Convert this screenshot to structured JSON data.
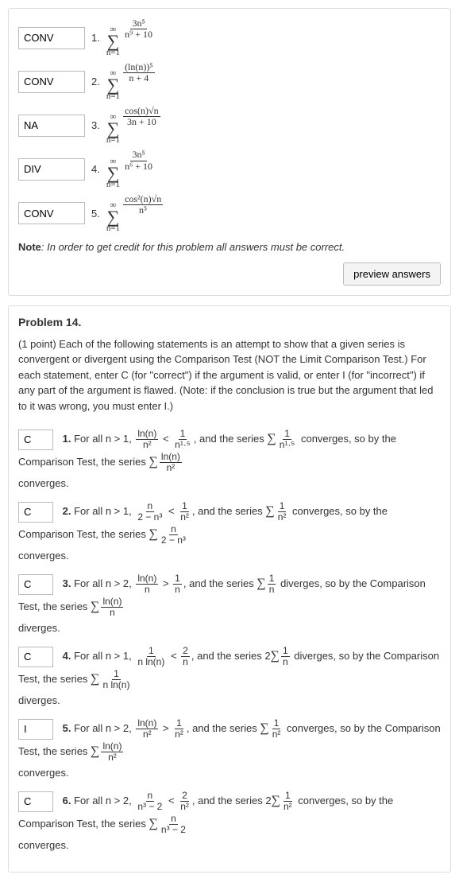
{
  "problem13": {
    "rows": [
      {
        "answer": "CONV",
        "num": "1.",
        "summand_top": "3n⁵",
        "summand_bot": "n⁹ + 10"
      },
      {
        "answer": "CONV",
        "num": "2.",
        "summand_top": "(ln(n))⁵",
        "summand_bot": "n + 4"
      },
      {
        "answer": "NA",
        "num": "3.",
        "summand_top": "cos(n)√n",
        "summand_bot": "3n + 10"
      },
      {
        "answer": "DIV",
        "num": "4.",
        "summand_top": "3n⁵",
        "summand_bot": "n⁶ + 10"
      },
      {
        "answer": "CONV",
        "num": "5.",
        "summand_top": "cos²(n)√n",
        "summand_bot": "n⁵"
      }
    ],
    "note_prefix": "Note",
    "note_text": ": In order to get credit for this problem all answers must be correct.",
    "preview_btn": "preview answers"
  },
  "problem14": {
    "header": "Problem 14.",
    "desc": "(1 point) Each of the following statements is an attempt to show that a given series is convergent or divergent using the Comparison Test (NOT the Limit Comparison Test.) For each statement, enter C (for \"correct\") if the argument is valid, or enter I (for \"incorrect\") if any part of the argument is flawed. (Note: if the conclusion is true but the argument that led to it was wrong, you must enter I.)",
    "statements": [
      {
        "answer": "C",
        "num": "1.",
        "pre": "For all n > 1, ",
        "lhs_top": "ln(n)",
        "lhs_bot": "n²",
        "rel": " < ",
        "rhs_top": "1",
        "rhs_bot": "n¹·⁵",
        "mid": ", and the series ",
        "cmp_top": "1",
        "cmp_bot": "n¹·⁵",
        "verb": " converges, so by the Comparison Test, the series ",
        "tail_top": "ln(n)",
        "tail_bot": "n²",
        "tail_verb": " converges."
      },
      {
        "answer": "C",
        "num": "2.",
        "pre": "For all n > 1, ",
        "lhs_top": "n",
        "lhs_bot": "2 − n³",
        "rel": " < ",
        "rhs_top": "1",
        "rhs_bot": "n²",
        "mid": ", and the series ",
        "cmp_top": "1",
        "cmp_bot": "n²",
        "verb": " converges, so by the Comparison Test, the series ",
        "tail_top": "n",
        "tail_bot": "2 − n³",
        "tail_verb": " converges."
      },
      {
        "answer": "C",
        "num": "3.",
        "pre": "For all n > 2, ",
        "lhs_top": "ln(n)",
        "lhs_bot": "n",
        "rel": " > ",
        "rhs_top": "1",
        "rhs_bot": "n",
        "mid": ", and the series ",
        "cmp_top": "1",
        "cmp_bot": "n",
        "verb": " diverges, so by the Comparison Test, the series ",
        "tail_top": "ln(n)",
        "tail_bot": "n",
        "tail_verb": "diverges."
      },
      {
        "answer": "C",
        "num": "4.",
        "pre": "For all n > 1, ",
        "lhs_top": "1",
        "lhs_bot": "n ln(n)",
        "rel": " < ",
        "rhs_top": "2",
        "rhs_bot": "n",
        "mid": ", and the series 2",
        "cmp_top": "1",
        "cmp_bot": "n",
        "verb": " diverges, so by the Comparison Test, the series ",
        "tail_top": "1",
        "tail_bot": "n ln(n)",
        "tail_verb": " diverges."
      },
      {
        "answer": "I",
        "num": "5.",
        "pre": "For all n > 2, ",
        "lhs_top": "ln(n)",
        "lhs_bot": "n²",
        "rel": " > ",
        "rhs_top": "1",
        "rhs_bot": "n²",
        "mid": ", and the series ",
        "cmp_top": "1",
        "cmp_bot": "n²",
        "verb": " converges, so by the Comparison Test, the series ",
        "tail_top": "ln(n)",
        "tail_bot": "n²",
        "tail_verb": " converges."
      },
      {
        "answer": "C",
        "num": "6.",
        "pre": "For all n > 2, ",
        "lhs_top": "n",
        "lhs_bot": "n³ − 2",
        "rel": " < ",
        "rhs_top": "2",
        "rhs_bot": "n²",
        "mid": ", and the series 2",
        "cmp_top": "1",
        "cmp_bot": "n²",
        "verb": " converges, so by the Comparison Test, the series ",
        "tail_top": "n",
        "tail_bot": "n³ − 2",
        "tail_verb": " converges."
      }
    ]
  },
  "sum_upper": "∞",
  "sum_lower": "n=1"
}
